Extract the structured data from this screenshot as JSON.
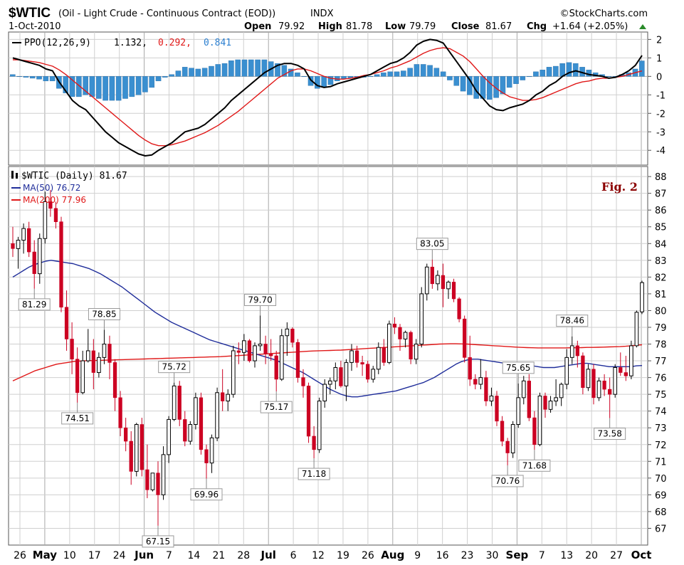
{
  "header": {
    "symbol": "$WTIC",
    "description": "(Oil - Light Crude - Continuous Contract (EOD))",
    "exchange": "INDX",
    "source": "©StockCharts.com",
    "date": "1-Oct-2010",
    "quote": {
      "open_label": "Open",
      "open": "79.92",
      "high_label": "High",
      "high": "81.78",
      "low_label": "Low",
      "low": "79.79",
      "close_label": "Close",
      "close": "81.67",
      "chg_label": "Chg",
      "chg": "+1.64 (+2.05%)"
    },
    "up_color": "#2a8a2a"
  },
  "figure_label": "Fig. 2",
  "ppo_legend": {
    "name": "PPO(12,26,9)",
    "v1": "1.132,",
    "v2": "0.292,",
    "v3": "0.841"
  },
  "price_legend": {
    "name": "$WTIC (Daily) 81.67",
    "ma50": "MA(50) 76.72",
    "ma200": "MA(200) 77.96"
  },
  "colors": {
    "up": "#000000",
    "down": "#cc0022",
    "ma50": "#1f2d9a",
    "ma200": "#e01818",
    "ppo": "#000000",
    "signal": "#e01818",
    "hist": "#3a8fd0",
    "grid": "#cfcfcf"
  },
  "x_ticks": [
    "26",
    "May",
    "10",
    "17",
    "24",
    "Jun",
    "7",
    "14",
    "21",
    "28",
    "Jul",
    "6",
    "12",
    "19",
    "26",
    "Aug",
    "9",
    "16",
    "23",
    "30",
    "Sep",
    "7",
    "13",
    "20",
    "27",
    "Oct"
  ],
  "x_bold": [
    "May",
    "Jun",
    "Jul",
    "Aug",
    "Sep",
    "Oct"
  ],
  "chart_data": [
    {
      "type": "line",
      "title": "PPO(12,26,9)",
      "ylim": [
        -4.8,
        2.4
      ],
      "yticks": [
        2,
        1,
        0,
        -1,
        -2,
        -3,
        -4
      ],
      "ppo": [
        1.0,
        0.9,
        0.8,
        0.7,
        0.6,
        0.4,
        0.3,
        -0.3,
        -0.8,
        -1.3,
        -1.6,
        -1.8,
        -2.2,
        -2.6,
        -3.0,
        -3.3,
        -3.6,
        -3.8,
        -4.0,
        -4.2,
        -4.3,
        -4.25,
        -4.0,
        -3.8,
        -3.6,
        -3.3,
        -3.0,
        -2.9,
        -2.8,
        -2.6,
        -2.3,
        -2.0,
        -1.7,
        -1.3,
        -1.0,
        -0.7,
        -0.4,
        -0.1,
        0.2,
        0.4,
        0.6,
        0.7,
        0.7,
        0.6,
        0.4,
        -0.2,
        -0.5,
        -0.6,
        -0.55,
        -0.4,
        -0.3,
        -0.2,
        -0.1,
        0.0,
        0.1,
        0.3,
        0.5,
        0.7,
        0.8,
        1.0,
        1.3,
        1.7,
        1.9,
        2.0,
        1.95,
        1.8,
        1.3,
        0.8,
        0.3,
        -0.2,
        -0.8,
        -1.2,
        -1.6,
        -1.8,
        -1.85,
        -1.7,
        -1.6,
        -1.5,
        -1.3,
        -1.0,
        -0.8,
        -0.5,
        -0.3,
        0.0,
        0.2,
        0.3,
        0.2,
        0.1,
        0.05,
        0.0,
        -0.1,
        -0.05,
        0.1,
        0.3,
        0.6,
        1.132
      ],
      "signal": [
        0.9,
        0.9,
        0.85,
        0.8,
        0.75,
        0.65,
        0.55,
        0.35,
        0.1,
        -0.2,
        -0.5,
        -0.8,
        -1.1,
        -1.4,
        -1.7,
        -2.0,
        -2.3,
        -2.6,
        -2.9,
        -3.2,
        -3.45,
        -3.65,
        -3.75,
        -3.75,
        -3.7,
        -3.6,
        -3.5,
        -3.35,
        -3.2,
        -3.05,
        -2.85,
        -2.65,
        -2.4,
        -2.15,
        -1.9,
        -1.6,
        -1.3,
        -1.0,
        -0.7,
        -0.4,
        -0.1,
        0.1,
        0.3,
        0.4,
        0.4,
        0.3,
        0.15,
        0.0,
        -0.1,
        -0.15,
        -0.15,
        -0.1,
        -0.05,
        0.05,
        0.1,
        0.2,
        0.3,
        0.45,
        0.55,
        0.7,
        0.85,
        1.05,
        1.25,
        1.4,
        1.5,
        1.55,
        1.5,
        1.3,
        1.1,
        0.8,
        0.4,
        0.0,
        -0.35,
        -0.65,
        -0.9,
        -1.1,
        -1.2,
        -1.3,
        -1.3,
        -1.25,
        -1.15,
        -1.0,
        -0.85,
        -0.7,
        -0.55,
        -0.4,
        -0.3,
        -0.25,
        -0.15,
        -0.1,
        -0.1,
        -0.05,
        0.0,
        0.1,
        0.2,
        0.292
      ]
    },
    {
      "type": "candlestick",
      "title": "$WTIC (Daily) 81.67",
      "ylim": [
        66,
        88.6
      ],
      "yticks": [
        88,
        87,
        86,
        85,
        84,
        83,
        82,
        81,
        80,
        79,
        78,
        77,
        76,
        75,
        74,
        73,
        72,
        71,
        70,
        69,
        68,
        67
      ],
      "ohlc": [
        [
          84.0,
          85.0,
          83.2,
          83.7
        ],
        [
          83.7,
          84.4,
          82.5,
          84.2
        ],
        [
          84.2,
          85.2,
          83.4,
          84.9
        ],
        [
          84.9,
          85.3,
          83.2,
          83.5
        ],
        [
          83.5,
          84.2,
          81.3,
          82.2
        ],
        [
          82.2,
          84.6,
          81.6,
          84.3
        ],
        [
          84.3,
          87.1,
          84.0,
          86.5
        ],
        [
          86.5,
          87.2,
          85.6,
          86.1
        ],
        [
          86.1,
          86.5,
          84.9,
          85.3
        ],
        [
          85.3,
          85.6,
          79.9,
          80.2
        ],
        [
          80.2,
          81.2,
          77.6,
          78.3
        ],
        [
          78.3,
          79.3,
          76.2,
          77.1
        ],
        [
          77.1,
          77.8,
          74.5,
          75.1
        ],
        [
          75.1,
          77.6,
          75.0,
          77.0
        ],
        [
          77.0,
          78.9,
          76.9,
          77.6
        ],
        [
          77.6,
          78.3,
          75.3,
          76.3
        ],
        [
          76.3,
          77.5,
          76.0,
          77.2
        ],
        [
          77.2,
          78.85,
          76.8,
          78.0
        ],
        [
          78.0,
          78.5,
          75.9,
          76.9
        ],
        [
          76.9,
          77.1,
          74.0,
          74.8
        ],
        [
          74.8,
          75.2,
          72.5,
          73.0
        ],
        [
          73.0,
          73.6,
          71.6,
          72.2
        ],
        [
          72.2,
          72.8,
          69.6,
          70.4
        ],
        [
          70.4,
          73.3,
          70.1,
          73.2
        ],
        [
          73.2,
          73.6,
          70.1,
          70.5
        ],
        [
          70.5,
          72.0,
          68.8,
          69.3
        ],
        [
          69.3,
          70.2,
          69.2,
          70.3
        ],
        [
          70.3,
          71.0,
          67.15,
          69.0
        ],
        [
          69.0,
          71.9,
          68.7,
          71.4
        ],
        [
          71.4,
          73.7,
          70.9,
          73.5
        ],
        [
          73.5,
          75.7,
          73.4,
          75.5
        ],
        [
          75.5,
          75.8,
          73.1,
          73.5
        ],
        [
          73.5,
          74.0,
          71.9,
          72.2
        ],
        [
          72.2,
          73.4,
          72.0,
          73.2
        ],
        [
          73.2,
          75.1,
          72.9,
          74.8
        ],
        [
          74.8,
          75.1,
          71.4,
          71.7
        ],
        [
          71.7,
          72.0,
          69.96,
          70.9
        ],
        [
          70.9,
          72.6,
          70.3,
          72.4
        ],
        [
          72.4,
          75.4,
          72.2,
          75.1
        ],
        [
          75.1,
          76.5,
          74.0,
          74.6
        ],
        [
          74.6,
          75.3,
          74.0,
          75.0
        ],
        [
          75.0,
          77.9,
          74.8,
          77.6
        ],
        [
          77.6,
          78.1,
          76.8,
          77.5
        ],
        [
          77.5,
          78.6,
          77.0,
          78.2
        ],
        [
          78.2,
          78.3,
          76.9,
          77.0
        ],
        [
          77.0,
          78.1,
          76.6,
          77.9
        ],
        [
          77.9,
          79.7,
          77.6,
          78.0
        ],
        [
          78.0,
          78.5,
          76.8,
          77.4
        ],
        [
          77.4,
          78.3,
          77.0,
          77.3
        ],
        [
          77.3,
          77.6,
          75.17,
          75.9
        ],
        [
          75.9,
          78.9,
          75.8,
          78.5
        ],
        [
          78.5,
          79.3,
          77.3,
          78.9
        ],
        [
          78.9,
          79.0,
          77.8,
          78.1
        ],
        [
          78.1,
          78.3,
          75.7,
          76.0
        ],
        [
          76.0,
          76.5,
          74.8,
          75.5
        ],
        [
          75.5,
          75.7,
          72.1,
          72.5
        ],
        [
          72.5,
          73.1,
          71.18,
          71.7
        ],
        [
          71.7,
          74.8,
          71.5,
          74.6
        ],
        [
          74.6,
          75.9,
          74.2,
          75.6
        ],
        [
          75.6,
          76.0,
          75.0,
          75.8
        ],
        [
          75.8,
          76.9,
          75.3,
          76.6
        ],
        [
          76.6,
          77.0,
          75.4,
          75.5
        ],
        [
          75.5,
          77.1,
          74.6,
          76.9
        ],
        [
          76.9,
          78.0,
          76.4,
          77.6
        ],
        [
          77.6,
          77.9,
          76.6,
          76.9
        ],
        [
          76.9,
          77.3,
          76.1,
          76.8
        ],
        [
          76.8,
          77.0,
          75.7,
          75.9
        ],
        [
          75.9,
          76.7,
          75.7,
          76.5
        ],
        [
          76.5,
          78.1,
          76.2,
          77.8
        ],
        [
          77.8,
          78.3,
          76.7,
          76.9
        ],
        [
          76.9,
          79.4,
          76.8,
          79.2
        ],
        [
          79.2,
          79.6,
          78.6,
          79.0
        ],
        [
          79.0,
          79.2,
          77.6,
          78.3
        ],
        [
          78.3,
          78.8,
          77.8,
          78.7
        ],
        [
          78.7,
          78.8,
          76.8,
          77.1
        ],
        [
          77.1,
          78.3,
          76.8,
          78.0
        ],
        [
          78.0,
          81.4,
          77.8,
          81.0
        ],
        [
          81.0,
          82.8,
          80.6,
          82.6
        ],
        [
          82.6,
          83.05,
          81.3,
          81.6
        ],
        [
          81.6,
          82.4,
          81.2,
          82.1
        ],
        [
          82.1,
          82.8,
          80.2,
          81.3
        ],
        [
          81.3,
          81.8,
          80.7,
          81.7
        ],
        [
          81.7,
          81.9,
          80.5,
          80.7
        ],
        [
          80.7,
          80.8,
          79.3,
          79.5
        ],
        [
          79.5,
          79.7,
          76.9,
          77.2
        ],
        [
          77.2,
          78.5,
          75.5,
          75.9
        ],
        [
          75.9,
          76.2,
          75.3,
          75.6
        ],
        [
          75.6,
          77.1,
          75.3,
          76.0
        ],
        [
          76.0,
          76.4,
          74.3,
          74.6
        ],
        [
          74.6,
          75.4,
          74.3,
          74.9
        ],
        [
          74.9,
          75.2,
          73.1,
          73.4
        ],
        [
          73.4,
          73.7,
          71.9,
          72.2
        ],
        [
          72.2,
          72.4,
          70.76,
          71.5
        ],
        [
          71.5,
          73.4,
          71.2,
          73.2
        ],
        [
          73.2,
          75.65,
          73.0,
          74.8
        ],
        [
          74.8,
          76.1,
          74.4,
          75.8
        ],
        [
          75.8,
          76.2,
          73.4,
          73.6
        ],
        [
          73.6,
          74.0,
          71.68,
          72.0
        ],
        [
          72.0,
          75.1,
          71.9,
          74.9
        ],
        [
          74.9,
          75.1,
          73.6,
          74.1
        ],
        [
          74.1,
          74.9,
          73.9,
          74.6
        ],
        [
          74.6,
          75.9,
          74.3,
          74.8
        ],
        [
          74.8,
          75.7,
          74.3,
          75.6
        ],
        [
          75.6,
          77.7,
          75.3,
          77.2
        ],
        [
          77.2,
          78.46,
          76.8,
          77.9
        ],
        [
          77.9,
          78.2,
          76.6,
          77.3
        ],
        [
          77.3,
          77.5,
          75.0,
          75.4
        ],
        [
          75.4,
          76.8,
          75.2,
          76.5
        ],
        [
          76.5,
          76.8,
          74.4,
          74.8
        ],
        [
          74.8,
          76.0,
          74.6,
          75.8
        ],
        [
          75.8,
          76.2,
          74.9,
          75.3
        ],
        [
          75.3,
          76.0,
          73.58,
          75.0
        ],
        [
          75.0,
          76.8,
          74.8,
          76.6
        ],
        [
          76.6,
          77.5,
          76.1,
          76.3
        ],
        [
          76.3,
          77.3,
          75.8,
          76.1
        ],
        [
          76.1,
          78.2,
          75.9,
          77.9
        ],
        [
          77.9,
          80.0,
          77.8,
          79.9
        ],
        [
          79.92,
          81.78,
          79.79,
          81.67
        ]
      ],
      "ma50": [
        82.0,
        82.2,
        82.4,
        82.6,
        82.75,
        82.85,
        82.95,
        83.0,
        82.95,
        82.9,
        82.85,
        82.8,
        82.7,
        82.6,
        82.5,
        82.35,
        82.2,
        82.0,
        81.8,
        81.6,
        81.4,
        81.15,
        80.9,
        80.65,
        80.4,
        80.15,
        79.9,
        79.7,
        79.5,
        79.3,
        79.15,
        79.0,
        78.85,
        78.7,
        78.55,
        78.4,
        78.25,
        78.15,
        78.05,
        77.95,
        77.85,
        77.75,
        77.65,
        77.55,
        77.45,
        77.35,
        77.25,
        77.15,
        77.05,
        76.9,
        76.75,
        76.6,
        76.45,
        76.3,
        76.1,
        75.9,
        75.7,
        75.5,
        75.3,
        75.15,
        75.0,
        74.9,
        74.85,
        74.85,
        74.9,
        74.95,
        75.0,
        75.05,
        75.1,
        75.15,
        75.2,
        75.3,
        75.4,
        75.5,
        75.6,
        75.7,
        75.85,
        76.0,
        76.2,
        76.4,
        76.6,
        76.8,
        76.95,
        77.05,
        77.1,
        77.1,
        77.05,
        77.0,
        76.95,
        76.9,
        76.85,
        76.8,
        76.8,
        76.8,
        76.75,
        76.7,
        76.65,
        76.6,
        76.6,
        76.6,
        76.65,
        76.7,
        76.75,
        76.8,
        76.85,
        76.85,
        76.8,
        76.75,
        76.7,
        76.65,
        76.65,
        76.65,
        76.65,
        76.65,
        76.7,
        76.72
      ],
      "ma200": [
        75.8,
        75.95,
        76.1,
        76.25,
        76.4,
        76.5,
        76.6,
        76.7,
        76.8,
        76.85,
        76.9,
        76.95,
        76.98,
        77.0,
        77.01,
        77.02,
        77.03,
        77.04,
        77.05,
        77.06,
        77.07,
        77.08,
        77.09,
        77.1,
        77.11,
        77.12,
        77.13,
        77.14,
        77.15,
        77.16,
        77.17,
        77.18,
        77.19,
        77.2,
        77.21,
        77.22,
        77.23,
        77.24,
        77.25,
        77.27,
        77.29,
        77.31,
        77.33,
        77.35,
        77.37,
        77.39,
        77.41,
        77.43,
        77.45,
        77.47,
        77.49,
        77.51,
        77.53,
        77.55,
        77.57,
        77.59,
        77.6,
        77.61,
        77.62,
        77.63,
        77.64,
        77.66,
        77.68,
        77.7,
        77.72,
        77.74,
        77.76,
        77.78,
        77.8,
        77.82,
        77.84,
        77.86,
        77.88,
        77.9,
        77.92,
        77.94,
        77.96,
        77.98,
        78.0,
        78.01,
        78.02,
        78.02,
        78.01,
        78.0,
        77.98,
        77.96,
        77.94,
        77.92,
        77.9,
        77.88,
        77.86,
        77.84,
        77.82,
        77.8,
        77.79,
        77.78,
        77.77,
        77.77,
        77.77,
        77.77,
        77.77,
        77.77,
        77.78,
        77.78,
        77.79,
        77.8,
        77.8,
        77.81,
        77.82,
        77.83,
        77.84,
        77.85,
        77.87,
        77.9,
        77.93,
        77.96
      ],
      "annotations": [
        {
          "label": "81.29",
          "i": 4,
          "pos": "below"
        },
        {
          "label": "78.85",
          "i": 17,
          "pos": "above"
        },
        {
          "label": "74.51",
          "i": 12,
          "pos": "below"
        },
        {
          "label": "75.72",
          "i": 30,
          "pos": "above"
        },
        {
          "label": "67.15",
          "i": 27,
          "pos": "below"
        },
        {
          "label": "69.96",
          "i": 36,
          "pos": "below"
        },
        {
          "label": "79.70",
          "i": 46,
          "pos": "above"
        },
        {
          "label": "75.17",
          "i": 49,
          "pos": "below"
        },
        {
          "label": "71.18",
          "i": 56,
          "pos": "below"
        },
        {
          "label": "83.05",
          "i": 78,
          "pos": "above"
        },
        {
          "label": "75.65",
          "i": 94,
          "pos": "above"
        },
        {
          "label": "70.76",
          "i": 92,
          "pos": "below"
        },
        {
          "label": "71.68",
          "i": 97,
          "pos": "below"
        },
        {
          "label": "78.46",
          "i": 104,
          "pos": "above"
        },
        {
          "label": "73.58",
          "i": 111,
          "pos": "below"
        }
      ]
    }
  ]
}
